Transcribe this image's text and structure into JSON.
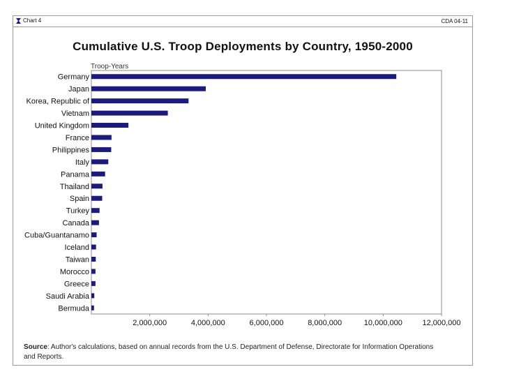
{
  "header": {
    "chart_label": "Chart 4",
    "chart_code": "CDA 04-11"
  },
  "chart_data": {
    "type": "bar",
    "orientation": "horizontal",
    "title": "Cumulative U.S. Troop Deployments by Country, 1950-2000",
    "unit_label": "Troop-Years",
    "xlim": [
      0,
      12000000
    ],
    "x_ticks": [
      "2,000,000",
      "4,000,000",
      "6,000,000",
      "8,000,000",
      "10,000,000",
      "12,000,000"
    ],
    "categories": [
      "Germany",
      "Japan",
      "Korea, Republic of",
      "Vietnam",
      "United Kingdom",
      "France",
      "Philippines",
      "Italy",
      "Panama",
      "Thailand",
      "Spain",
      "Turkey",
      "Canada",
      "Cuba/Guantanamo",
      "Iceland",
      "Taiwan",
      "Morocco",
      "Greece",
      "Saudi Arabia",
      "Bermuda"
    ],
    "values": [
      10450000,
      3920000,
      3330000,
      2620000,
      1270000,
      690000,
      680000,
      580000,
      470000,
      380000,
      370000,
      280000,
      260000,
      180000,
      160000,
      150000,
      140000,
      140000,
      100000,
      90000
    ],
    "bar_color": "#1a1a80",
    "legend": "none",
    "grid": false
  },
  "source": {
    "label": "Source",
    "text": ": Author's calculations, based on annual records from the U.S. Department of Defense, Directorate for Information Operations and Reports."
  }
}
